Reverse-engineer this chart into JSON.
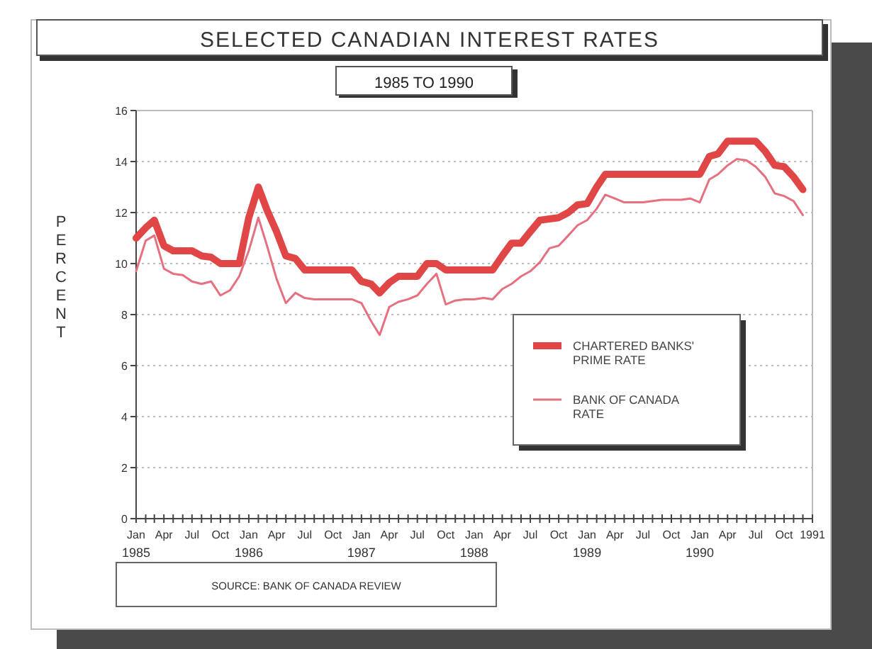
{
  "chart_data": {
    "type": "line",
    "title": "SELECTED CANADIAN INTEREST RATES",
    "subtitle": "1985 TO 1990",
    "ylabel": "PERCENT",
    "annotations": [
      "SOURCE: BANK OF CANADA REVIEW"
    ],
    "x": [
      "1985-01",
      "1985-02",
      "1985-03",
      "1985-04",
      "1985-05",
      "1985-06",
      "1985-07",
      "1985-08",
      "1985-09",
      "1985-10",
      "1985-11",
      "1985-12",
      "1986-01",
      "1986-02",
      "1986-03",
      "1986-04",
      "1986-05",
      "1986-06",
      "1986-07",
      "1986-08",
      "1986-09",
      "1986-10",
      "1986-11",
      "1986-12",
      "1987-01",
      "1987-02",
      "1987-03",
      "1987-04",
      "1987-05",
      "1987-06",
      "1987-07",
      "1987-08",
      "1987-09",
      "1987-10",
      "1987-11",
      "1987-12",
      "1988-01",
      "1988-02",
      "1988-03",
      "1988-04",
      "1988-05",
      "1988-06",
      "1988-07",
      "1988-08",
      "1988-09",
      "1988-10",
      "1988-11",
      "1988-12",
      "1989-01",
      "1989-02",
      "1989-03",
      "1989-04",
      "1989-05",
      "1989-06",
      "1989-07",
      "1989-08",
      "1989-09",
      "1989-10",
      "1989-11",
      "1989-12",
      "1990-01",
      "1990-02",
      "1990-03",
      "1990-04",
      "1990-05",
      "1990-06",
      "1990-07",
      "1990-08",
      "1990-09",
      "1990-10",
      "1990-11",
      "1990-12"
    ],
    "series": [
      {
        "name": "CHARTERED BANKS' PRIME RATE",
        "color": "#e04646",
        "values": [
          11.0,
          11.4,
          11.7,
          10.7,
          10.5,
          10.5,
          10.5,
          10.3,
          10.25,
          10.0,
          10.0,
          10.0,
          11.8,
          13.0,
          12.1,
          11.25,
          10.3,
          10.2,
          9.75,
          9.75,
          9.75,
          9.75,
          9.75,
          9.75,
          9.3,
          9.2,
          8.85,
          9.25,
          9.5,
          9.5,
          9.5,
          10.0,
          10.0,
          9.75,
          9.75,
          9.75,
          9.75,
          9.75,
          9.75,
          10.3,
          10.8,
          10.8,
          11.25,
          11.7,
          11.75,
          11.8,
          12.0,
          12.3,
          12.35,
          13.0,
          13.5,
          13.5,
          13.5,
          13.5,
          13.5,
          13.5,
          13.5,
          13.5,
          13.5,
          13.5,
          13.5,
          14.2,
          14.3,
          14.8,
          14.8,
          14.8,
          14.8,
          14.4,
          13.85,
          13.8,
          13.4,
          12.9
        ]
      },
      {
        "name": "BANK OF CANADA RATE",
        "color": "#e67080",
        "values": [
          9.7,
          10.9,
          11.1,
          9.8,
          9.6,
          9.55,
          9.3,
          9.2,
          9.3,
          8.75,
          8.95,
          9.5,
          10.5,
          11.8,
          10.7,
          9.4,
          8.45,
          8.85,
          8.65,
          8.6,
          8.6,
          8.6,
          8.6,
          8.6,
          8.45,
          7.75,
          7.2,
          8.3,
          8.5,
          8.6,
          8.75,
          9.2,
          9.6,
          8.4,
          8.55,
          8.6,
          8.6,
          8.65,
          8.6,
          9.0,
          9.2,
          9.5,
          9.7,
          10.05,
          10.6,
          10.7,
          11.1,
          11.5,
          11.7,
          12.15,
          12.7,
          12.55,
          12.4,
          12.4,
          12.4,
          12.45,
          12.5,
          12.5,
          12.5,
          12.55,
          12.4,
          13.3,
          13.5,
          13.85,
          14.1,
          14.05,
          13.8,
          13.4,
          12.75,
          12.65,
          12.45,
          11.9
        ]
      }
    ],
    "xlim": [
      "1985-01",
      "1991-01"
    ],
    "xticks": [
      {
        "value": "1985-01",
        "label": "Jan\n1985"
      },
      {
        "value": "1985-02",
        "label": null
      },
      {
        "value": "1985-03",
        "label": null
      },
      {
        "value": "1985-04",
        "label": "Apr"
      },
      {
        "value": "1985-05",
        "label": null
      },
      {
        "value": "1985-06",
        "label": null
      },
      {
        "value": "1985-07",
        "label": "Jul"
      },
      {
        "value": "1985-08",
        "label": null
      },
      {
        "value": "1985-09",
        "label": null
      },
      {
        "value": "1985-10",
        "label": "Oct"
      },
      {
        "value": "1985-11",
        "label": null
      },
      {
        "value": "1985-12",
        "label": null
      },
      {
        "value": "1986-01",
        "label": "Jan\n1986"
      },
      {
        "value": "1986-02",
        "label": null
      },
      {
        "value": "1986-03",
        "label": null
      },
      {
        "value": "1986-04",
        "label": "Apr"
      },
      {
        "value": "1986-05",
        "label": null
      },
      {
        "value": "1986-06",
        "label": null
      },
      {
        "value": "1986-07",
        "label": "Jul"
      },
      {
        "value": "1986-08",
        "label": null
      },
      {
        "value": "1986-09",
        "label": null
      },
      {
        "value": "1986-10",
        "label": "Oct"
      },
      {
        "value": "1986-11",
        "label": null
      },
      {
        "value": "1986-12",
        "label": null
      },
      {
        "value": "1987-01",
        "label": "Jan\n1987"
      },
      {
        "value": "1987-02",
        "label": null
      },
      {
        "value": "1987-03",
        "label": null
      },
      {
        "value": "1987-04",
        "label": "Apr"
      },
      {
        "value": "1987-05",
        "label": null
      },
      {
        "value": "1987-06",
        "label": null
      },
      {
        "value": "1987-07",
        "label": "Jul"
      },
      {
        "value": "1987-08",
        "label": null
      },
      {
        "value": "1987-09",
        "label": null
      },
      {
        "value": "1987-10",
        "label": "Oct"
      },
      {
        "value": "1987-11",
        "label": null
      },
      {
        "value": "1987-12",
        "label": null
      },
      {
        "value": "1988-01",
        "label": "Jan\n1988"
      },
      {
        "value": "1988-02",
        "label": null
      },
      {
        "value": "1988-03",
        "label": null
      },
      {
        "value": "1988-04",
        "label": "Apr"
      },
      {
        "value": "1988-05",
        "label": null
      },
      {
        "value": "1988-06",
        "label": null
      },
      {
        "value": "1988-07",
        "label": "Jul"
      },
      {
        "value": "1988-08",
        "label": null
      },
      {
        "value": "1988-09",
        "label": null
      },
      {
        "value": "1988-10",
        "label": "Oct"
      },
      {
        "value": "1988-11",
        "label": null
      },
      {
        "value": "1988-12",
        "label": null
      },
      {
        "value": "1989-01",
        "label": "Jan\n1989"
      },
      {
        "value": "1989-02",
        "label": null
      },
      {
        "value": "1989-03",
        "label": null
      },
      {
        "value": "1989-04",
        "label": "Apr"
      },
      {
        "value": "1989-05",
        "label": null
      },
      {
        "value": "1989-06",
        "label": null
      },
      {
        "value": "1989-07",
        "label": "Jul"
      },
      {
        "value": "1989-08",
        "label": null
      },
      {
        "value": "1989-09",
        "label": null
      },
      {
        "value": "1989-10",
        "label": "Oct"
      },
      {
        "value": "1989-11",
        "label": null
      },
      {
        "value": "1989-12",
        "label": null
      },
      {
        "value": "1990-01",
        "label": "Jan\n1990"
      },
      {
        "value": "1990-02",
        "label": null
      },
      {
        "value": "1990-03",
        "label": null
      },
      {
        "value": "1990-04",
        "label": "Apr"
      },
      {
        "value": "1990-05",
        "label": null
      },
      {
        "value": "1990-06",
        "label": null
      },
      {
        "value": "1990-07",
        "label": "Jul"
      },
      {
        "value": "1990-08",
        "label": null
      },
      {
        "value": "1990-09",
        "label": null
      },
      {
        "value": "1990-10",
        "label": "Oct"
      },
      {
        "value": "1990-11",
        "label": null
      },
      {
        "value": "1990-12",
        "label": null
      },
      {
        "value": "1991-01",
        "label": "1991"
      }
    ],
    "ylim": [
      0,
      16
    ],
    "yticks": [
      0,
      2,
      4,
      6,
      8,
      10,
      12,
      14,
      16
    ],
    "grid": "y",
    "legend": "right",
    "line_style": "solid",
    "marker": "none"
  }
}
